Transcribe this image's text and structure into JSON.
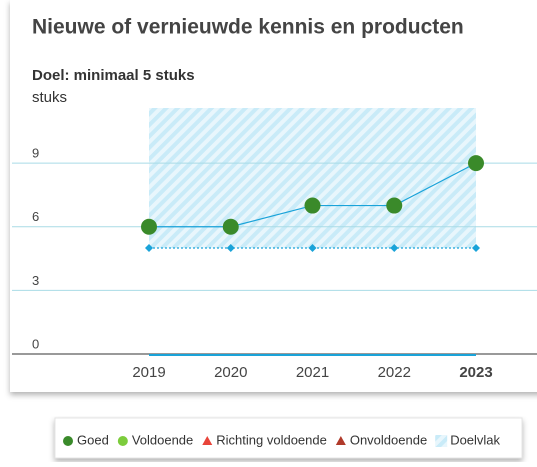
{
  "chart_data": {
    "type": "line",
    "title": "Nieuwe of vernieuwde kennis en producten",
    "subtitle": "Doel: minimaal 5 stuks",
    "y_label": "stuks",
    "categories": [
      "2019",
      "2020",
      "2021",
      "2022",
      "2023"
    ],
    "highlight_category": 4,
    "values": [
      6,
      6,
      7,
      7,
      9
    ],
    "target_values": [
      5,
      5,
      5,
      5,
      5
    ],
    "line_color": "#1aa3d9",
    "point_color": "#3a8a2a",
    "ylim": [
      0,
      11.6
    ],
    "yticks": [
      0,
      3,
      6,
      9
    ],
    "grid": true,
    "legend": [
      {
        "name": "Goed",
        "color": "#3a8a2a",
        "shape": "circle"
      },
      {
        "name": "Voldoende",
        "color": "#7ccc3c",
        "shape": "circle"
      },
      {
        "name": "Richting voldoende",
        "color": "#e8443a",
        "shape": "triangle"
      },
      {
        "name": "Onvoldoende",
        "color": "#b03a2a",
        "shape": "triangle"
      },
      {
        "name": "Doelvlak",
        "color": "#bfe6f5",
        "shape": "hatch"
      }
    ]
  }
}
